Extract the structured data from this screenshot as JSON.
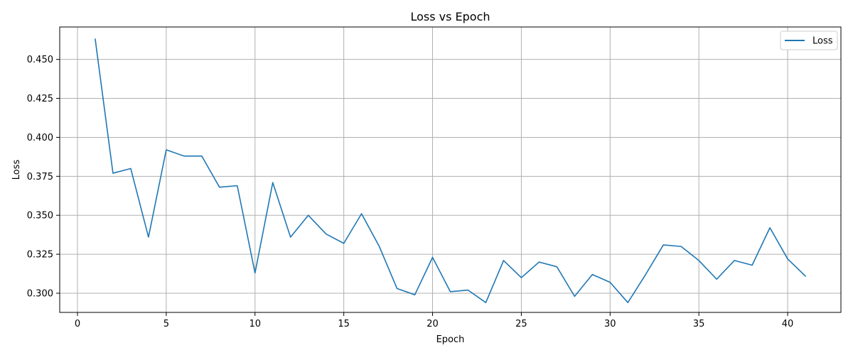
{
  "chart_data": {
    "type": "line",
    "title": "Loss vs Epoch",
    "xlabel": "Epoch",
    "ylabel": "Loss",
    "xlim": [
      -1.0,
      43.0
    ],
    "ylim": [
      0.2877,
      0.4708
    ],
    "xticks": [
      0,
      5,
      10,
      15,
      20,
      25,
      30,
      35,
      40
    ],
    "yticks": [
      0.3,
      0.325,
      0.35,
      0.375,
      0.4,
      0.425,
      0.45
    ],
    "ytick_labels": [
      "0.300",
      "0.325",
      "0.350",
      "0.375",
      "0.400",
      "0.425",
      "0.450"
    ],
    "grid": true,
    "legend_position": "top-right",
    "series": [
      {
        "name": "Loss",
        "color": "#1f77b4",
        "x": [
          1,
          2,
          3,
          4,
          5,
          6,
          7,
          8,
          9,
          10,
          11,
          12,
          13,
          14,
          15,
          16,
          17,
          18,
          19,
          20,
          21,
          22,
          23,
          24,
          25,
          26,
          27,
          28,
          29,
          30,
          31,
          32,
          33,
          34,
          35,
          36,
          37,
          38,
          39,
          40,
          41
        ],
        "y": [
          0.463,
          0.377,
          0.38,
          0.336,
          0.392,
          0.388,
          0.388,
          0.368,
          0.369,
          0.313,
          0.371,
          0.336,
          0.35,
          0.338,
          0.332,
          0.351,
          0.33,
          0.303,
          0.299,
          0.323,
          0.301,
          0.302,
          0.294,
          0.321,
          0.31,
          0.32,
          0.317,
          0.298,
          0.312,
          0.307,
          0.294,
          0.312,
          0.331,
          0.33,
          0.321,
          0.309,
          0.321,
          0.318,
          0.342,
          0.322,
          0.311
        ]
      }
    ]
  }
}
